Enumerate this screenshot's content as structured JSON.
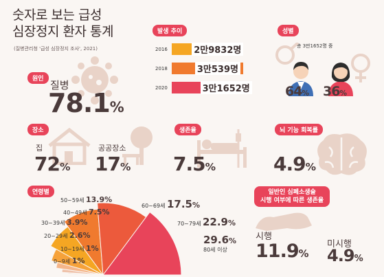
{
  "title": "숫자로 보는 급성\n심장정지 환자 통계",
  "source": "(질병관리청 '급성 심장정지 조사', 2021)",
  "cause": {
    "label": "원인",
    "item": "질병",
    "value": "78.1",
    "unit": "%"
  },
  "place": {
    "label": "장소",
    "home": {
      "name": "집",
      "value": "72",
      "unit": "%"
    },
    "public": {
      "name": "공공장소",
      "value": "17",
      "unit": "%"
    }
  },
  "occurrence": {
    "label": "발생 추이",
    "rows": [
      {
        "year": "2016",
        "value": "2만9832명",
        "color": "#f5a623",
        "fill": 0.64
      },
      {
        "year": "2018",
        "value": "3만539명",
        "color": "#f07a2e",
        "fill": 0.67
      },
      {
        "year": "2020",
        "value": "3만1652명",
        "color": "#e8445a",
        "fill": 0.72
      }
    ]
  },
  "gender": {
    "label": "성별",
    "note": "총 3만1652명 중",
    "male": {
      "value": "64",
      "unit": "%"
    },
    "female": {
      "value": "36",
      "unit": "%"
    }
  },
  "survival": {
    "label": "생존율",
    "value": "7.5",
    "unit": "%"
  },
  "brain": {
    "label": "뇌 기능 회복률",
    "value": "4.9",
    "unit": "%"
  },
  "age": {
    "label": "연령별",
    "groups": [
      {
        "name": "0~9세",
        "value": "1",
        "unit": "%"
      },
      {
        "name": "10~19세",
        "value": "1",
        "unit": "%"
      },
      {
        "name": "20~29세",
        "value": "2.6",
        "unit": "%"
      },
      {
        "name": "30~39세",
        "value": "3.9",
        "unit": "%"
      },
      {
        "name": "40~49세",
        "value": "7.5",
        "unit": "%"
      },
      {
        "name": "50~59세",
        "value": "13.9",
        "unit": "%"
      },
      {
        "name": "60~69세",
        "value": "17.5",
        "unit": "%"
      },
      {
        "name": "70~79세",
        "value": "22.9",
        "unit": "%"
      },
      {
        "name": "80세 이상",
        "value": "29.6",
        "unit": "%"
      }
    ]
  },
  "cpr": {
    "label_line1": "일반인 심폐소생술",
    "label_line2": "시행 여부에 따른 생존율",
    "done": {
      "name": "시행",
      "value": "11.9",
      "unit": "%"
    },
    "notdone": {
      "name": "미시행",
      "value": "4.9",
      "unit": "%"
    }
  },
  "colors": {
    "accent": "#e8445a",
    "orange": "#f07a2e",
    "yellow": "#f5a623",
    "beige": "#e9d3c8",
    "text": "#4a3a3a"
  }
}
